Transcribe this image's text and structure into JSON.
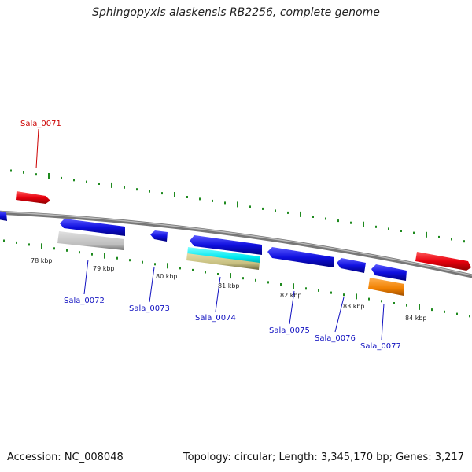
{
  "title": "Sphingopyxis alaskensis RB2256, complete genome",
  "footer": {
    "accession": "Accession: NC_008048",
    "summary": "Topology: circular; Length: 3,345,170 bp; Genes: 3,217"
  },
  "colors": {
    "forward_gene": "#e8000e",
    "reverse_gene": "#1010e0",
    "backbone": "#8a8a8a",
    "ticks": "#1f8a1f",
    "forward_label": "#cc0000",
    "reverse_label": "#1010c0",
    "grey_feature": "#c8c8c8",
    "cyan_feature": "#00e8f0",
    "olive_feature": "#c8c080",
    "orange_feature": "#f08000"
  },
  "scale_labels": [
    "78 kbp",
    "79 kbp",
    "80 kbp",
    "81 kbp",
    "82 kbp",
    "83 kbp",
    "84 kbp"
  ],
  "genes": [
    {
      "label": "Sala_0071",
      "strand": "forward"
    },
    {
      "label": "Sala_0072",
      "strand": "reverse"
    },
    {
      "label": "Sala_0073",
      "strand": "reverse"
    },
    {
      "label": "Sala_0074",
      "strand": "reverse"
    },
    {
      "label": "Sala_0075",
      "strand": "reverse"
    },
    {
      "label": "Sala_0076",
      "strand": "reverse"
    },
    {
      "label": "Sala_0077",
      "strand": "reverse"
    }
  ]
}
